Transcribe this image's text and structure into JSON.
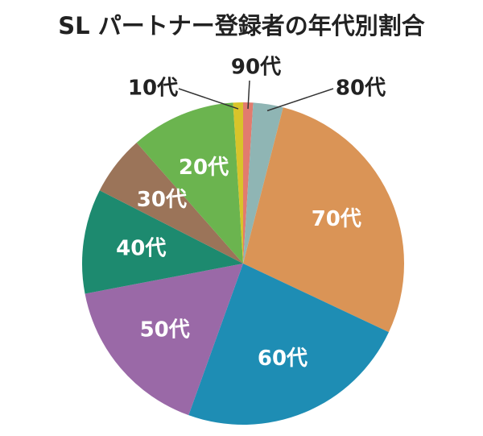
{
  "chart_data": {
    "type": "pie",
    "title": "SL パートナー登録者の年代別割合",
    "categories": [
      "90代",
      "80代",
      "70代",
      "60代",
      "50代",
      "40代",
      "30代",
      "20代",
      "10代"
    ],
    "values": [
      1,
      3,
      28,
      23.5,
      16.5,
      10.5,
      6,
      10.5,
      1
    ],
    "colors": [
      "#e27b6e",
      "#8fb5b4",
      "#da9456",
      "#1e8db4",
      "#9a69a7",
      "#1d8a6f",
      "#9b7459",
      "#6bb44f",
      "#d8c42a"
    ]
  }
}
